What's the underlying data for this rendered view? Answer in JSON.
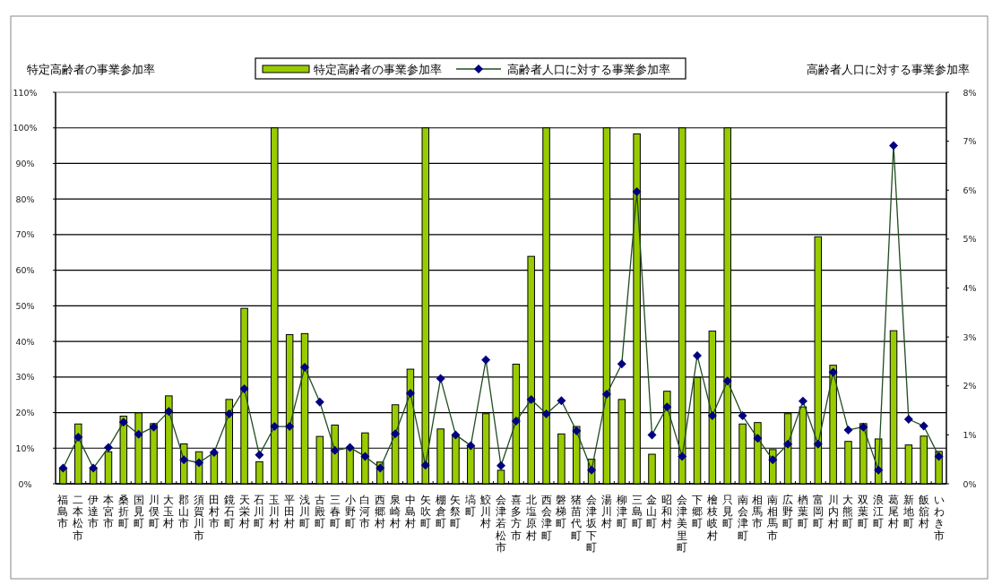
{
  "chart_data": {
    "type": "bar",
    "ylabel": "特定高齢者の事業参加率",
    "y2label": "高齢者人口に対する事業参加率",
    "categories": [
      "福島市",
      "二本松市",
      "伊達市",
      "本宮市",
      "桑折町",
      "国見町",
      "川俣町",
      "大玉村",
      "郡山市",
      "須賀川市",
      "田村市",
      "鏡石町",
      "天栄村",
      "石川町",
      "玉川村",
      "平田村",
      "浅川町",
      "古殿町",
      "三春町",
      "小野町",
      "白河市",
      "西郷村",
      "泉崎村",
      "中島村",
      "矢吹町",
      "棚倉町",
      "矢祭町",
      "塙町",
      "鮫川村",
      "会津若松市",
      "喜多方市",
      "北塩原村",
      "西会津町",
      "磐梯町",
      "猪苗代町",
      "会津坂下町",
      "湯川村",
      "柳津町",
      "三島町",
      "金山町",
      "昭和村",
      "会津美里町",
      "下郷町",
      "檜枝岐村",
      "只見町",
      "南会津町",
      "相馬市",
      "南相馬市",
      "広野町",
      "楢葉町",
      "富岡町",
      "川内村",
      "大熊町",
      "双葉町",
      "浪江町",
      "葛尾村",
      "新地町",
      "飯舘村",
      "いわき市"
    ],
    "series": [
      {
        "name": "特定高齢者の事業参加率",
        "color": "#99cc00",
        "values": [
          4.2,
          16.8,
          4.2,
          9.0,
          19.0,
          19.9,
          16.9,
          24.7,
          11.2,
          9.0,
          8.6,
          23.7,
          49.3,
          6.2,
          100,
          41.9,
          42.2,
          13.3,
          16.5,
          10.1,
          14.3,
          6.1,
          22.2,
          32.2,
          100,
          15.4,
          13.4,
          10.7,
          19.7,
          3.8,
          33.6,
          63.9,
          100,
          14.0,
          16.1,
          6.9,
          100,
          23.7,
          98.3,
          8.3,
          26.0,
          100,
          29.9,
          42.9,
          100,
          16.8,
          17.2,
          9.6,
          19.7,
          21.6,
          69.4,
          33.3,
          11.9,
          16.9,
          12.6,
          43.0,
          10.9,
          13.4,
          9.1
        ]
      },
      {
        "name": "高齢者人口に対する事業参加率",
        "type": "line",
        "axis": "y2",
        "color": "#000080",
        "values": [
          0.32,
          0.95,
          0.32,
          0.74,
          1.26,
          1.01,
          1.16,
          1.48,
          0.49,
          0.43,
          0.64,
          1.43,
          1.94,
          0.59,
          1.17,
          1.17,
          2.38,
          1.67,
          0.68,
          0.74,
          0.56,
          0.32,
          1.02,
          1.85,
          0.38,
          2.15,
          1.0,
          0.78,
          2.53,
          0.37,
          1.28,
          1.72,
          1.43,
          1.7,
          1.08,
          0.28,
          1.83,
          2.45,
          5.97,
          1.0,
          1.57,
          0.56,
          2.62,
          1.39,
          2.1,
          1.39,
          0.93,
          0.49,
          0.81,
          1.69,
          0.81,
          2.28,
          1.1,
          1.16,
          0.28,
          6.91,
          1.32,
          1.18,
          0.56
        ]
      }
    ],
    "ylim": [
      0,
      110
    ],
    "yticks": [
      {
        "value": 0,
        "label": "0%"
      },
      {
        "value": 10,
        "label": "10%"
      },
      {
        "value": 20,
        "label": "20%"
      },
      {
        "value": 30,
        "label": "30%"
      },
      {
        "value": 40,
        "label": "40%"
      },
      {
        "value": 50,
        "label": "50%"
      },
      {
        "value": 60,
        "label": "60%"
      },
      {
        "value": 70,
        "label": "70%"
      },
      {
        "value": 80,
        "label": "80%"
      },
      {
        "value": 90,
        "label": "90%"
      },
      {
        "value": 100,
        "label": "100%"
      },
      {
        "value": 110,
        "label": "110%"
      }
    ],
    "y2lim": [
      0,
      8
    ],
    "y2ticks": [
      {
        "value": 0,
        "label": "0%"
      },
      {
        "value": 1,
        "label": "1%"
      },
      {
        "value": 2,
        "label": "2%"
      },
      {
        "value": 3,
        "label": "3%"
      },
      {
        "value": 4,
        "label": "4%"
      },
      {
        "value": 5,
        "label": "5%"
      },
      {
        "value": 6,
        "label": "6%"
      },
      {
        "value": 7,
        "label": "7%"
      },
      {
        "value": 8,
        "label": "8%"
      }
    ],
    "grid": "y",
    "legend": "top",
    "marker": "diamond"
  }
}
